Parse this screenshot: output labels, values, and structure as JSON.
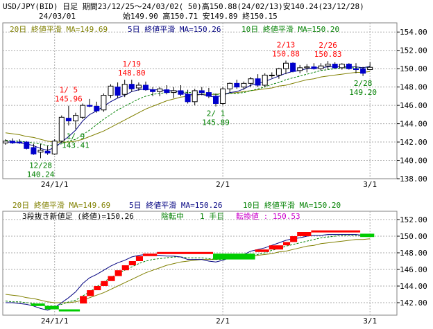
{
  "header": {
    "title": "USD/JPY(BID) 日足 期間23/12/25～24/03/02( 50)高150.88(24/02/13)安140.24(23/12/28)",
    "date": "24/03/01",
    "ohlc": "始149.90 高150.71 安149.89 終150.15"
  },
  "colors": {
    "bull": "#ffffff",
    "bear": "#0000cc",
    "ma5": "#000080",
    "ma10": "#008000",
    "ma20": "#808000",
    "red_brick": "#ff0000",
    "green_brick": "#00cc00",
    "high_label": "#ff0000",
    "low_label": "#008000",
    "grid": "#aaaaaa"
  },
  "top_panel": {
    "legend": {
      "ma20": "20日 終値平滑 MA=149.69",
      "ma5": "5日 終値平滑 MA=150.26",
      "ma10": "10日 終値平滑 MA=150.20"
    }
  },
  "bottom_panel": {
    "legend": {
      "ma20": "20日 終値平滑 MA=149.69",
      "ma5": "5日 終値平滑 MA=150.26",
      "ma10": "10日 終値平滑 MA=150.20"
    },
    "status": {
      "method": "3段抜き新値足 (終値)=150.26",
      "state": "陰転中",
      "hand": "1 手目",
      "reversal": "転換値 : 150.53"
    }
  },
  "chart_data": [
    {
      "type": "candlestick",
      "ylim": [
        138,
        155
      ],
      "yticks": [
        "138.00",
        "140.00",
        "142.00",
        "144.00",
        "146.00",
        "148.00",
        "150.00",
        "152.00",
        "154.00"
      ],
      "xticks": [
        {
          "index": 7,
          "label": "24/1/1"
        },
        {
          "index": 31,
          "label": "2/1"
        },
        {
          "index": 52,
          "label": "3/1"
        }
      ],
      "candles": [
        {
          "o": 141.9,
          "h": 142.3,
          "l": 141.7,
          "c": 142.1
        },
        {
          "o": 142.1,
          "h": 142.4,
          "l": 141.8,
          "c": 141.9
        },
        {
          "o": 142.0,
          "h": 142.3,
          "l": 141.8,
          "c": 141.9
        },
        {
          "o": 142.0,
          "h": 142.1,
          "l": 141.2,
          "c": 141.3
        },
        {
          "o": 141.4,
          "h": 141.8,
          "l": 140.6,
          "c": 140.7
        },
        {
          "o": 140.9,
          "h": 141.8,
          "l": 140.24,
          "c": 141.1
        },
        {
          "o": 141.0,
          "h": 141.6,
          "l": 140.6,
          "c": 140.8
        },
        {
          "o": 140.7,
          "h": 142.3,
          "l": 140.6,
          "c": 142.1
        },
        {
          "o": 142.1,
          "h": 144.9,
          "l": 141.9,
          "c": 144.7
        },
        {
          "o": 144.6,
          "h": 145.96,
          "l": 143.8,
          "c": 144.3
        },
        {
          "o": 144.3,
          "h": 145.2,
          "l": 143.4,
          "c": 144.9
        },
        {
          "o": 144.7,
          "h": 146.2,
          "l": 144.5,
          "c": 146.0
        },
        {
          "o": 146.0,
          "h": 146.7,
          "l": 145.8,
          "c": 145.9
        },
        {
          "o": 145.9,
          "h": 146.4,
          "l": 145.2,
          "c": 145.4
        },
        {
          "o": 145.5,
          "h": 147.3,
          "l": 145.3,
          "c": 147.1
        },
        {
          "o": 147.1,
          "h": 148.3,
          "l": 146.8,
          "c": 148.1
        },
        {
          "o": 148.0,
          "h": 148.5,
          "l": 146.8,
          "c": 147.1
        },
        {
          "o": 147.2,
          "h": 148.8,
          "l": 146.9,
          "c": 148.3
        },
        {
          "o": 148.3,
          "h": 148.8,
          "l": 147.5,
          "c": 147.8
        },
        {
          "o": 147.9,
          "h": 148.5,
          "l": 147.6,
          "c": 148.2
        },
        {
          "o": 148.2,
          "h": 148.6,
          "l": 147.6,
          "c": 147.7
        },
        {
          "o": 147.7,
          "h": 148.0,
          "l": 147.0,
          "c": 147.5
        },
        {
          "o": 147.5,
          "h": 148.0,
          "l": 147.0,
          "c": 147.8
        },
        {
          "o": 147.7,
          "h": 148.2,
          "l": 147.2,
          "c": 147.4
        },
        {
          "o": 147.4,
          "h": 148.0,
          "l": 146.8,
          "c": 147.6
        },
        {
          "o": 147.6,
          "h": 148.2,
          "l": 147.0,
          "c": 147.2
        },
        {
          "o": 147.2,
          "h": 147.7,
          "l": 146.2,
          "c": 146.4
        },
        {
          "o": 146.4,
          "h": 147.8,
          "l": 146.0,
          "c": 147.6
        },
        {
          "o": 147.6,
          "h": 148.0,
          "l": 147.1,
          "c": 147.4
        },
        {
          "o": 147.4,
          "h": 147.9,
          "l": 146.8,
          "c": 147.0
        },
        {
          "o": 147.0,
          "h": 147.3,
          "l": 145.89,
          "c": 146.2
        },
        {
          "o": 146.2,
          "h": 148.0,
          "l": 146.0,
          "c": 147.8
        },
        {
          "o": 147.8,
          "h": 148.5,
          "l": 147.4,
          "c": 148.4
        },
        {
          "o": 148.4,
          "h": 148.8,
          "l": 147.8,
          "c": 148.0
        },
        {
          "o": 148.0,
          "h": 148.6,
          "l": 147.7,
          "c": 148.4
        },
        {
          "o": 148.4,
          "h": 149.1,
          "l": 148.0,
          "c": 148.9
        },
        {
          "o": 148.9,
          "h": 149.4,
          "l": 148.0,
          "c": 148.2
        },
        {
          "o": 148.2,
          "h": 149.5,
          "l": 148.0,
          "c": 149.3
        },
        {
          "o": 149.3,
          "h": 149.6,
          "l": 149.0,
          "c": 149.3
        },
        {
          "o": 149.3,
          "h": 150.1,
          "l": 148.9,
          "c": 150.0
        },
        {
          "o": 150.0,
          "h": 150.88,
          "l": 149.4,
          "c": 150.6
        },
        {
          "o": 150.6,
          "h": 150.7,
          "l": 149.6,
          "c": 149.7
        },
        {
          "o": 149.8,
          "h": 150.4,
          "l": 149.5,
          "c": 150.1
        },
        {
          "o": 150.1,
          "h": 150.5,
          "l": 149.6,
          "c": 150.2
        },
        {
          "o": 150.2,
          "h": 150.6,
          "l": 149.9,
          "c": 150.0
        },
        {
          "o": 150.0,
          "h": 150.6,
          "l": 149.8,
          "c": 150.3
        },
        {
          "o": 150.3,
          "h": 150.83,
          "l": 149.9,
          "c": 150.5
        },
        {
          "o": 150.5,
          "h": 150.7,
          "l": 150.0,
          "c": 150.1
        },
        {
          "o": 150.1,
          "h": 150.6,
          "l": 149.9,
          "c": 150.5
        },
        {
          "o": 150.5,
          "h": 150.6,
          "l": 149.9,
          "c": 150.0
        },
        {
          "o": 150.0,
          "h": 150.6,
          "l": 149.5,
          "c": 149.9
        },
        {
          "o": 150.0,
          "h": 150.2,
          "l": 149.2,
          "c": 149.5
        },
        {
          "o": 149.9,
          "h": 150.71,
          "l": 149.89,
          "c": 150.15
        }
      ],
      "ma5": [
        142.0,
        142.0,
        141.9,
        141.8,
        141.6,
        141.3,
        141.1,
        141.4,
        142.0,
        142.6,
        143.3,
        144.3,
        145.0,
        145.4,
        145.9,
        146.4,
        146.8,
        147.1,
        147.5,
        147.7,
        147.8,
        147.7,
        147.7,
        147.6,
        147.6,
        147.5,
        147.2,
        147.2,
        147.2,
        147.0,
        146.9,
        147.1,
        147.4,
        147.5,
        147.8,
        148.2,
        148.4,
        148.6,
        148.9,
        149.2,
        149.5,
        149.7,
        149.8,
        150.0,
        150.1,
        150.1,
        150.2,
        150.2,
        150.2,
        150.2,
        150.2,
        150.1,
        150.26
      ],
      "ma10": [
        142.2,
        142.1,
        142.1,
        142.0,
        141.9,
        141.8,
        141.6,
        141.6,
        141.8,
        142.1,
        142.3,
        142.8,
        143.3,
        143.9,
        144.5,
        145.0,
        145.5,
        145.9,
        146.3,
        146.7,
        147.0,
        147.2,
        147.3,
        147.4,
        147.5,
        147.5,
        147.4,
        147.4,
        147.4,
        147.3,
        147.2,
        147.2,
        147.3,
        147.3,
        147.4,
        147.6,
        147.8,
        148.0,
        148.3,
        148.5,
        148.8,
        149.0,
        149.2,
        149.4,
        149.6,
        149.8,
        149.9,
        150.0,
        150.1,
        150.1,
        150.1,
        150.1,
        150.2
      ],
      "ma20": [
        143.0,
        142.9,
        142.8,
        142.6,
        142.5,
        142.3,
        142.1,
        142.0,
        142.0,
        142.0,
        142.1,
        142.3,
        142.6,
        142.9,
        143.2,
        143.6,
        144.0,
        144.4,
        144.8,
        145.2,
        145.6,
        145.9,
        146.2,
        146.5,
        146.7,
        146.9,
        147.0,
        147.1,
        147.2,
        147.2,
        147.2,
        147.3,
        147.3,
        147.4,
        147.5,
        147.6,
        147.7,
        147.8,
        147.9,
        148.1,
        148.2,
        148.4,
        148.6,
        148.8,
        148.9,
        149.1,
        149.2,
        149.3,
        149.4,
        149.5,
        149.6,
        149.6,
        149.69
      ],
      "annotations": [
        {
          "index": 5,
          "date": "12/28",
          "value": "140.24",
          "kind": "low"
        },
        {
          "index": 9,
          "date": "1/ 5",
          "value": "145.96",
          "kind": "high"
        },
        {
          "index": 10,
          "date": "1/ 9",
          "value": "143.41",
          "kind": "low"
        },
        {
          "index": 18,
          "date": "1/19",
          "value": "148.80",
          "kind": "high"
        },
        {
          "index": 30,
          "date": "2/ 1",
          "value": "145.89",
          "kind": "low"
        },
        {
          "index": 40,
          "date": "2/13",
          "value": "150.88",
          "kind": "high"
        },
        {
          "index": 46,
          "date": "2/26",
          "value": "150.83",
          "kind": "high"
        },
        {
          "index": 51,
          "date": "2/28",
          "value": "149.20",
          "kind": "low"
        }
      ]
    },
    {
      "type": "three-line-break",
      "ylim": [
        140.5,
        153.0
      ],
      "yticks": [
        "142.00",
        "144.00",
        "146.00",
        "148.00",
        "150.00",
        "152.00"
      ],
      "xticks": [
        {
          "index": 7,
          "label": "24/1/1"
        },
        {
          "index": 31,
          "label": "2/1"
        },
        {
          "index": 52,
          "label": "3/1"
        }
      ],
      "bricks": [
        {
          "start": 4,
          "end": 6,
          "from": 141.9,
          "to": 141.6,
          "dir": "down"
        },
        {
          "start": 6,
          "end": 8,
          "from": 141.6,
          "to": 141.2,
          "dir": "down"
        },
        {
          "start": 8,
          "end": 11,
          "from": 141.2,
          "to": 141.0,
          "dir": "down"
        },
        {
          "start": 11,
          "end": 12,
          "from": 141.9,
          "to": 142.8,
          "dir": "up"
        },
        {
          "start": 12,
          "end": 13,
          "from": 142.8,
          "to": 143.5,
          "dir": "up"
        },
        {
          "start": 13,
          "end": 14,
          "from": 143.5,
          "to": 144.0,
          "dir": "up"
        },
        {
          "start": 14,
          "end": 15,
          "from": 144.0,
          "to": 144.6,
          "dir": "up"
        },
        {
          "start": 15,
          "end": 16,
          "from": 144.6,
          "to": 145.2,
          "dir": "up"
        },
        {
          "start": 16,
          "end": 17,
          "from": 145.2,
          "to": 145.9,
          "dir": "up"
        },
        {
          "start": 17,
          "end": 18,
          "from": 145.9,
          "to": 146.5,
          "dir": "up"
        },
        {
          "start": 18,
          "end": 19,
          "from": 146.5,
          "to": 147.0,
          "dir": "up"
        },
        {
          "start": 19,
          "end": 20,
          "from": 147.0,
          "to": 147.6,
          "dir": "up"
        },
        {
          "start": 20,
          "end": 22,
          "from": 147.6,
          "to": 147.9,
          "dir": "up"
        },
        {
          "start": 22,
          "end": 30,
          "from": 147.9,
          "to": 148.1,
          "dir": "up"
        },
        {
          "start": 30,
          "end": 36,
          "from": 147.9,
          "to": 147.2,
          "dir": "down"
        },
        {
          "start": 36,
          "end": 38,
          "from": 148.1,
          "to": 148.4,
          "dir": "up"
        },
        {
          "start": 38,
          "end": 40,
          "from": 148.4,
          "to": 148.9,
          "dir": "up"
        },
        {
          "start": 40,
          "end": 41,
          "from": 148.9,
          "to": 149.3,
          "dir": "up"
        },
        {
          "start": 41,
          "end": 42,
          "from": 149.3,
          "to": 150.0,
          "dir": "up"
        },
        {
          "start": 42,
          "end": 44,
          "from": 150.0,
          "to": 150.5,
          "dir": "up"
        },
        {
          "start": 44,
          "end": 51,
          "from": 150.5,
          "to": 150.7,
          "dir": "up"
        },
        {
          "start": 51,
          "end": 53,
          "from": 150.3,
          "to": 149.9,
          "dir": "down"
        }
      ],
      "ma_shift": -1.2
    }
  ]
}
